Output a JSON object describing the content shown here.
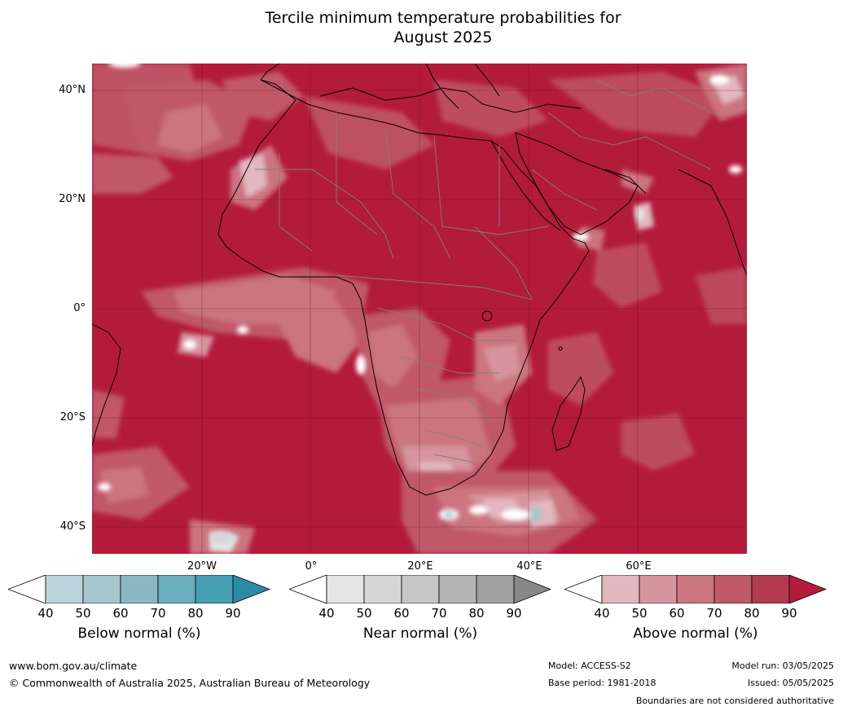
{
  "title": {
    "line1": "Tercile minimum temperature probabilities for",
    "line2": "August 2025"
  },
  "map": {
    "lat_labels": [
      "40°N",
      "20°N",
      "0°",
      "20°S",
      "40°S"
    ],
    "lon_labels": [
      "20°W",
      "0°",
      "20°E",
      "40°E",
      "60°E"
    ],
    "background_color": "#b31b3b",
    "coastline_color": "#000000",
    "border_color": "#808080"
  },
  "colorbars": [
    {
      "label": "Below normal (%)",
      "ticks": [
        "40",
        "50",
        "60",
        "70",
        "80",
        "90"
      ],
      "colors": [
        "#ffffff",
        "#bcd4dc",
        "#a6c7cf",
        "#89b8c4",
        "#6aafbe",
        "#45a0b2",
        "#2b8ba3"
      ]
    },
    {
      "label": "Near normal (%)",
      "ticks": [
        "40",
        "50",
        "60",
        "70",
        "80",
        "90"
      ],
      "colors": [
        "#ffffff",
        "#e4e4e4",
        "#d6d6d6",
        "#c6c6c6",
        "#b4b4b4",
        "#a0a0a0",
        "#888888"
      ]
    },
    {
      "label": "Above normal (%)",
      "ticks": [
        "40",
        "50",
        "60",
        "70",
        "80",
        "90"
      ],
      "colors": [
        "#ffffff",
        "#e2b8be",
        "#d6959e",
        "#cb7580",
        "#c0596a",
        "#b33b4f",
        "#b31b3b"
      ]
    }
  ],
  "footer": {
    "website": "www.bom.gov.au/climate",
    "copyright": "© Commonwealth of Australia 2025, Australian Bureau of Meteorology",
    "model": "Model: ACCESS-S2",
    "base_period": "Base period: 1981-2018",
    "model_run": "Model run: 03/05/2025",
    "issued": "Issued: 05/05/2025",
    "disclaimer": "Boundaries are not considered authoritative"
  }
}
